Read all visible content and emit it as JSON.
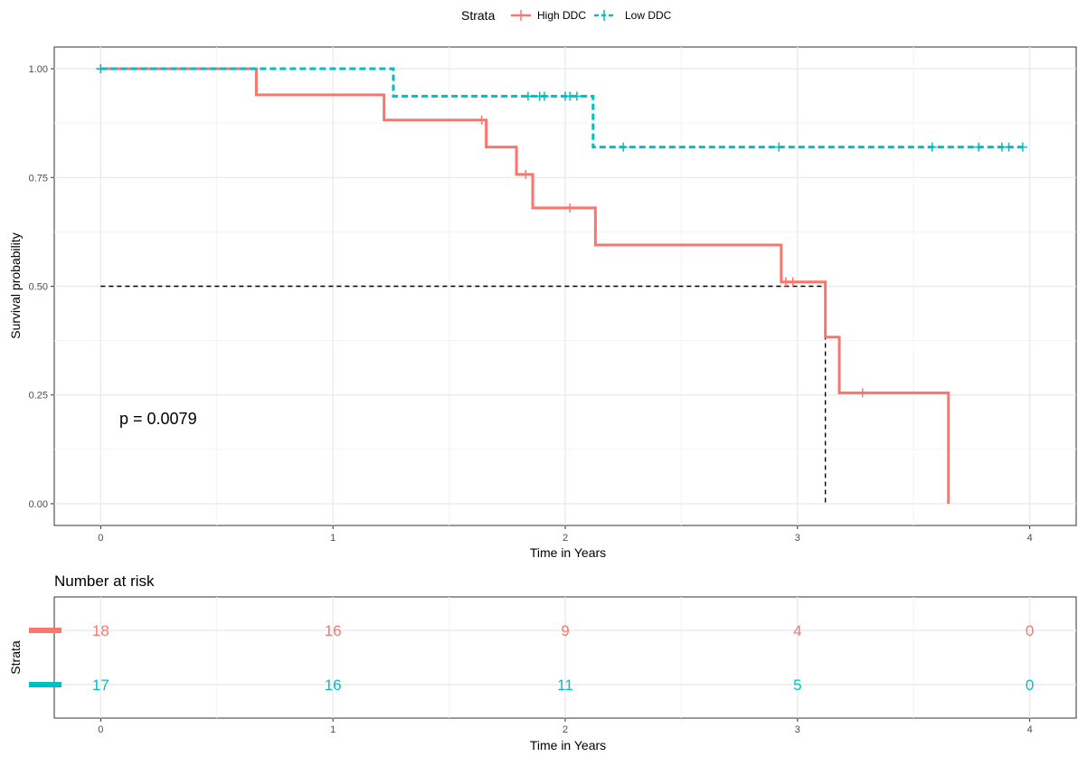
{
  "legend": {
    "title": "Strata",
    "items": [
      {
        "label": "High DDC",
        "color": "#F8766D"
      },
      {
        "label": "Low DDC",
        "color": "#00BFC4"
      }
    ]
  },
  "chart_data": [
    {
      "type": "line",
      "kind": "kaplan-meier",
      "title": "",
      "xlabel": "Time in Years",
      "ylabel": "Survival probability",
      "xlim": [
        -0.2,
        4.2
      ],
      "ylim": [
        -0.05,
        1.05
      ],
      "xticks": [
        "0",
        "1",
        "2",
        "3",
        "4"
      ],
      "yticks": [
        "0.00",
        "0.25",
        "0.50",
        "0.75",
        "1.00"
      ],
      "grid": true,
      "annotation": "p = 0.0079",
      "median_line": {
        "y": 0.5,
        "x": 3.12
      },
      "series": [
        {
          "name": "High DDC",
          "color": "#F8766D",
          "line_style": "solid",
          "steps": [
            [
              0,
              1.0
            ],
            [
              0.67,
              0.94
            ],
            [
              1.22,
              0.882
            ],
            [
              1.66,
              0.82
            ],
            [
              1.79,
              0.757
            ],
            [
              1.86,
              0.68
            ],
            [
              2.13,
              0.595
            ],
            [
              2.93,
              0.51
            ],
            [
              3.12,
              0.383
            ],
            [
              3.18,
              0.255
            ],
            [
              3.65,
              0.0
            ]
          ],
          "end": 3.65,
          "censor_times": [
            0,
            1.64,
            1.83,
            2.02,
            2.95,
            2.98,
            3.28
          ]
        },
        {
          "name": "Low DDC",
          "color": "#00BFC4",
          "line_style": "dashed",
          "steps": [
            [
              0,
              1.0
            ],
            [
              1.26,
              0.937
            ],
            [
              2.12,
              0.82
            ]
          ],
          "end": 3.97,
          "censor_times": [
            0,
            1.84,
            1.89,
            1.91,
            2.0,
            2.02,
            2.05,
            2.25,
            2.92,
            3.58,
            3.78,
            3.88,
            3.91,
            3.97
          ]
        }
      ]
    },
    {
      "type": "table",
      "title": "Number at risk",
      "xlabel": "Time in Years",
      "ylabel": "Strata",
      "xticks": [
        "0",
        "1",
        "2",
        "3",
        "4"
      ],
      "rows": [
        {
          "name": "High DDC",
          "color": "#F8766D",
          "values": [
            "18",
            "16",
            "9",
            "4",
            "0"
          ]
        },
        {
          "name": "Low DDC",
          "color": "#00BFC4",
          "values": [
            "17",
            "16",
            "11",
            "5",
            "0"
          ]
        }
      ]
    }
  ]
}
